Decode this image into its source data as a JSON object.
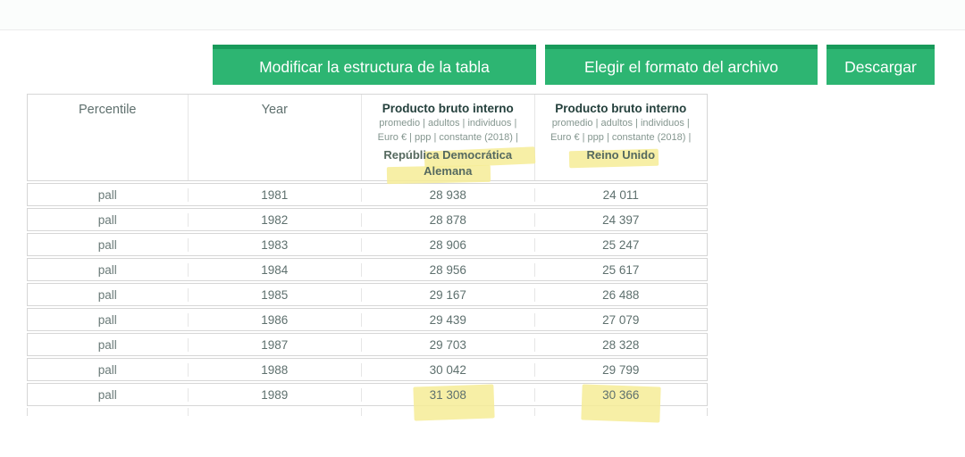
{
  "toolbar": {
    "buttons": [
      {
        "label": "Modificar la estructura de la tabla"
      },
      {
        "label": "Elegir el formato del archivo"
      },
      {
        "label": "Descargar"
      }
    ]
  },
  "table": {
    "columns": [
      {
        "label": "Percentile"
      },
      {
        "label": "Year"
      },
      {
        "title": "Producto bruto interno",
        "subtitle_1": "promedio | adultos | individuos |",
        "subtitle_2": "Euro € | ppp | constante (2018) |",
        "country": "República Democrática Alemana",
        "highlighted": true
      },
      {
        "title": "Producto bruto interno",
        "subtitle_1": "promedio | adultos | individuos |",
        "subtitle_2": "Euro € | ppp | constante (2018) |",
        "country": "Reino Unido",
        "highlighted": true
      }
    ],
    "rows": [
      {
        "percentile": "pall",
        "year": "1981",
        "gdp_ddr": "28 938",
        "gdp_uk": "24 011",
        "highlighted": false
      },
      {
        "percentile": "pall",
        "year": "1982",
        "gdp_ddr": "28 878",
        "gdp_uk": "24 397",
        "highlighted": false
      },
      {
        "percentile": "pall",
        "year": "1983",
        "gdp_ddr": "28 906",
        "gdp_uk": "25 247",
        "highlighted": false
      },
      {
        "percentile": "pall",
        "year": "1984",
        "gdp_ddr": "28 956",
        "gdp_uk": "25 617",
        "highlighted": false
      },
      {
        "percentile": "pall",
        "year": "1985",
        "gdp_ddr": "29 167",
        "gdp_uk": "26 488",
        "highlighted": false
      },
      {
        "percentile": "pall",
        "year": "1986",
        "gdp_ddr": "29 439",
        "gdp_uk": "27 079",
        "highlighted": false
      },
      {
        "percentile": "pall",
        "year": "1987",
        "gdp_ddr": "29 703",
        "gdp_uk": "28 328",
        "highlighted": false
      },
      {
        "percentile": "pall",
        "year": "1988",
        "gdp_ddr": "30 042",
        "gdp_uk": "29 799",
        "highlighted": false
      },
      {
        "percentile": "pall",
        "year": "1989",
        "gdp_ddr": "31 308",
        "gdp_uk": "30 366",
        "highlighted": true
      }
    ]
  },
  "colors": {
    "accent_green": "#2db572",
    "accent_green_dark": "#189a5a",
    "highlight_yellow": "#f6ec96",
    "text_dark": "#24403c",
    "text_muted": "#5e706e"
  }
}
